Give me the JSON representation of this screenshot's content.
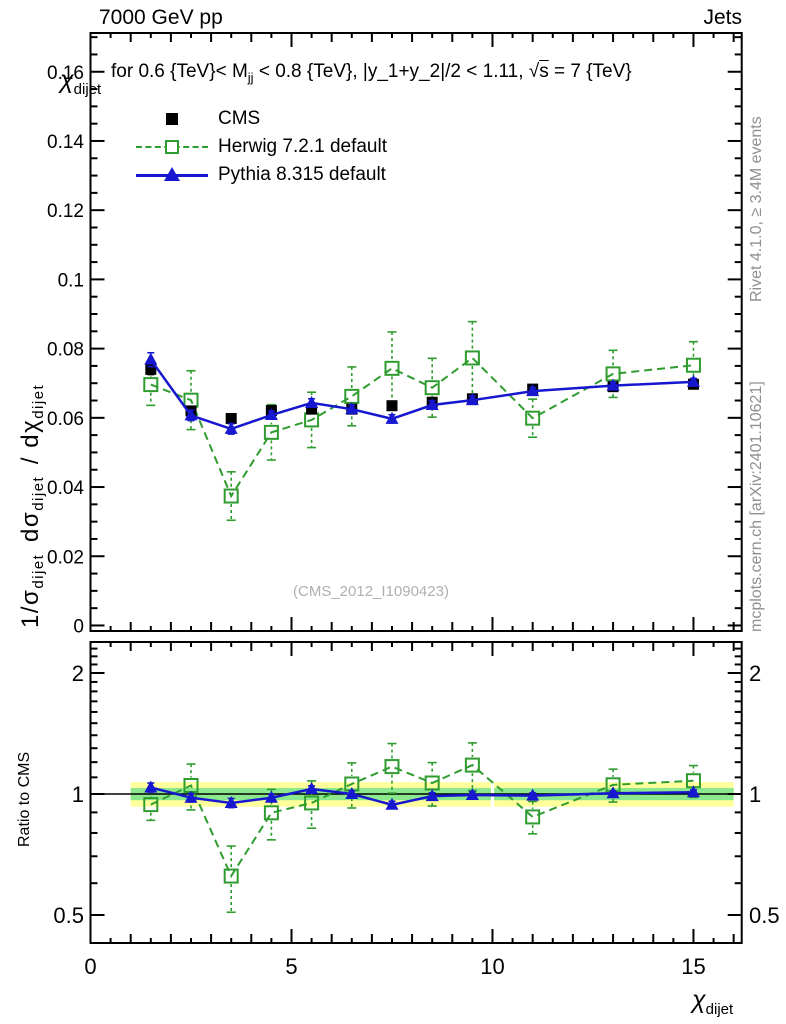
{
  "header": {
    "left": "7000 GeV pp",
    "right": "Jets"
  },
  "subtitle_parts": [
    {
      "t": "for 0.6 {TeV}< M"
    },
    {
      "t": "jj",
      "sub": true
    },
    {
      "t": " < 0.8 {TeV}, |y_1+y_2|/2 < 1.11, "
    },
    {
      "t": "√"
    },
    {
      "t": "s",
      "overline": true
    },
    {
      "t": " = 7 {TeV}"
    }
  ],
  "watermark": "(CMS_2012_I1090423)",
  "side_labels": {
    "rivet": "Rivet 4.1.0, ≥ 3.4M events",
    "mcplots": "mcplots.cern.ch [arXiv:2401.10621]"
  },
  "legend": [
    {
      "label": "CMS",
      "marker": "filled-square",
      "line": "none",
      "color": "#000000"
    },
    {
      "label": "Herwig 7.2.1 default",
      "marker": "open-square",
      "line": "dashed",
      "color": "#2f9c2f"
    },
    {
      "label": "Pythia 8.315 default",
      "marker": "filled-triangle",
      "line": "solid",
      "color": "#1717d0"
    }
  ],
  "colors": {
    "cms": "#000000",
    "herwig": "#2f9c2f",
    "pythia": "#1717d0",
    "band_yellow": "#ffff9c",
    "band_green": "#8ce88c",
    "gray_text": "#8f8f8f",
    "watermark": "#b0b0b0"
  },
  "axes": {
    "x": {
      "title_parts": [
        {
          "t": "χ"
        },
        {
          "t": "dijet",
          "sub": true
        }
      ],
      "lim": [
        0,
        16.2
      ],
      "major": [
        0,
        5,
        10,
        15
      ],
      "major_labels": [
        "0",
        "5",
        "10",
        "15"
      ],
      "medium_step": 1,
      "minor_step": 0.5
    },
    "y_main": {
      "title_parts": [
        {
          "t": "1/σ"
        },
        {
          "t": "dijet",
          "sub": true
        },
        {
          "t": "  dσ"
        },
        {
          "t": "dijet",
          "sub": true
        },
        {
          "t": " / dχ"
        },
        {
          "t": "dijet",
          "sub": true
        }
      ],
      "lim": [
        -0.0016,
        0.1712
      ],
      "major_values": [
        0,
        0.02,
        0.04,
        0.06,
        0.08,
        0.1,
        0.12,
        0.14,
        0.16
      ],
      "major_labels": [
        "0",
        "0.02",
        "0.04",
        "0.06",
        "0.08",
        "0.1",
        "0.12",
        "0.14",
        "0.16"
      ],
      "minor_step": 0.005
    },
    "y_ratio": {
      "label": "Ratio to CMS",
      "scale": "log",
      "lim": [
        0.42,
        2.39
      ],
      "major": [
        0.5,
        1,
        2
      ],
      "major_labels": [
        "0.5",
        "1",
        "2"
      ],
      "minor_start": 0.5,
      "minor_step": 0.1,
      "minor_end": 2.3
    }
  },
  "chart_data": {
    "type": "line",
    "title": "7000 GeV pp — Jets",
    "subtitle": "for 0.6 {TeV}< M_jj < 0.8 {TeV}, |y_1+y_2|/2 < 1.11, √s = 7 {TeV}",
    "xlabel": "χ_dijet",
    "x": [
      1.5,
      2.5,
      3.5,
      4.5,
      5.5,
      6.5,
      7.5,
      8.5,
      9.5,
      11,
      13,
      15
    ],
    "panels": [
      {
        "name": "main",
        "ylabel": "1/σ_dijet dσ_dijet / dχ_dijet",
        "ylim": [
          0,
          0.171
        ],
        "series": [
          {
            "name": "CMS",
            "values": [
              0.074,
              0.062,
              0.0598,
              0.0621,
              0.0625,
              0.0625,
              0.0635,
              0.0645,
              0.0655,
              0.0683,
              0.069,
              0.0697
            ],
            "errors": [
              0.0015,
              0.001,
              0.001,
              0.001,
              0.001,
              0.001,
              0.001,
              0.001,
              0.001,
              0.0008,
              0.0008,
              0.0008
            ]
          },
          {
            "name": "Herwig 7.2.1 default",
            "values": [
              0.0696,
              0.0651,
              0.0374,
              0.0558,
              0.0594,
              0.0662,
              0.0743,
              0.0687,
              0.0773,
              0.0599,
              0.0727,
              0.0752
            ],
            "errors": [
              0.006,
              0.0085,
              0.007,
              0.008,
              0.008,
              0.0085,
              0.0105,
              0.0085,
              0.0105,
              0.0055,
              0.0068,
              0.0068
            ]
          },
          {
            "name": "Pythia 8.315 default",
            "values": [
              0.0768,
              0.0607,
              0.0568,
              0.0608,
              0.0643,
              0.0625,
              0.0597,
              0.0637,
              0.0651,
              0.0677,
              0.0693,
              0.0704
            ],
            "errors": [
              0.002,
              0.0015,
              0.0015,
              0.0012,
              0.0012,
              0.0012,
              0.0012,
              0.0012,
              0.0012,
              0.001,
              0.001,
              0.001
            ]
          }
        ]
      },
      {
        "name": "ratio",
        "ylabel": "Ratio to CMS",
        "ylim": [
          0.42,
          2.39
        ],
        "series": [
          {
            "name": "Herwig/CMS",
            "values": [
              0.941,
              1.05,
              0.625,
              0.898,
              0.95,
              1.059,
              1.17,
              1.065,
              1.18,
              0.877,
              1.054,
              1.079
            ],
            "errors": [
              0.081,
              0.137,
              0.117,
              0.129,
              0.128,
              0.136,
              0.165,
              0.132,
              0.16,
              0.081,
              0.099,
              0.098
            ]
          },
          {
            "name": "Pythia/CMS",
            "values": [
              1.038,
              0.979,
              0.95,
              0.979,
              1.029,
              1.0,
              0.94,
              0.988,
              0.994,
              0.991,
              1.004,
              1.01
            ],
            "errors": [
              0.027,
              0.024,
              0.025,
              0.019,
              0.019,
              0.019,
              0.019,
              0.019,
              0.018,
              0.015,
              0.014,
              0.014
            ]
          }
        ],
        "bands": [
          {
            "name": "cms-uncertainty-outer",
            "lo": 0.93,
            "hi": 1.07,
            "color": "#ffff9c",
            "x_range": [
              1,
              16
            ],
            "gap_at": 10
          },
          {
            "name": "cms-uncertainty-inner",
            "lo": 0.965,
            "hi": 1.035,
            "color": "#8ce88c",
            "x_range": [
              1,
              16
            ],
            "gap_at": 10
          }
        ],
        "reference_line": 1.0
      }
    ]
  }
}
